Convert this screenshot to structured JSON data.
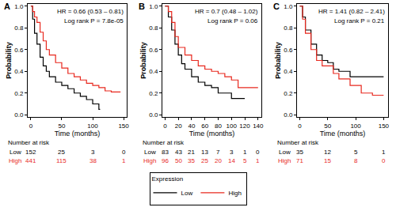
{
  "legend_title": "Expression",
  "chart_data": [
    {
      "type": "line",
      "panel": "A",
      "annotations": [
        "HR = 0.66 (0.53 – 0.81)",
        "Log rank P = 7.8e-05"
      ],
      "x_label": "Time (months)",
      "y_label": "Probability",
      "xlim": [
        -5,
        155
      ],
      "xticks": [
        0,
        50,
        100,
        150
      ],
      "ylim": [
        -0.02,
        1.02
      ],
      "yticks": [
        {
          "value": 0,
          "label": "0.0"
        },
        {
          "value": 0.2,
          "label": "0.2"
        },
        {
          "value": 0.4,
          "label": "0.4"
        },
        {
          "value": 0.6,
          "label": "0.6"
        },
        {
          "value": 0.8,
          "label": "0.8"
        },
        {
          "value": 1,
          "label": "1.0"
        }
      ],
      "grid": false,
      "series": [
        {
          "name": "Low",
          "color": "#000000",
          "line_style": "step",
          "x": [
            0,
            3,
            6,
            10,
            15,
            20,
            25,
            30,
            40,
            50,
            60,
            70,
            80,
            90,
            100,
            110,
            112
          ],
          "values": [
            1.0,
            0.88,
            0.75,
            0.65,
            0.53,
            0.45,
            0.4,
            0.35,
            0.3,
            0.27,
            0.24,
            0.2,
            0.17,
            0.14,
            0.1,
            0.05,
            0.05
          ]
        },
        {
          "name": "High",
          "color": "#e8281e",
          "line_style": "step",
          "x": [
            0,
            3,
            6,
            10,
            15,
            20,
            25,
            30,
            40,
            50,
            60,
            70,
            80,
            90,
            100,
            110,
            120,
            130,
            145
          ],
          "values": [
            1.0,
            0.95,
            0.9,
            0.85,
            0.76,
            0.68,
            0.6,
            0.55,
            0.48,
            0.43,
            0.38,
            0.35,
            0.32,
            0.29,
            0.27,
            0.25,
            0.22,
            0.21,
            0.21
          ]
        }
      ],
      "number_at_risk": {
        "title": "Number at risk",
        "times": [
          0,
          50,
          100,
          150
        ],
        "rows": [
          {
            "name": "Low",
            "values": [
              152,
              25,
              3,
              0
            ]
          },
          {
            "name": "High",
            "values": [
              441,
              115,
              38,
              1
            ]
          }
        ]
      }
    },
    {
      "type": "line",
      "panel": "B",
      "annotations": [
        "HR = 0.7 (0.48 – 1.02)",
        "Log rank P = 0.06"
      ],
      "x_label": "Time (months)",
      "y_label": "Probability",
      "xlim": [
        -4,
        145
      ],
      "xticks": [
        0,
        20,
        40,
        60,
        80,
        100,
        120,
        140
      ],
      "ylim": [
        -0.02,
        1.02
      ],
      "yticks": [
        {
          "value": 0,
          "label": "0.0"
        },
        {
          "value": 0.2,
          "label": "0.2"
        },
        {
          "value": 0.4,
          "label": "0.4"
        },
        {
          "value": 0.6,
          "label": "0.6"
        },
        {
          "value": 0.8,
          "label": "0.8"
        },
        {
          "value": 1,
          "label": "1.0"
        }
      ],
      "grid": false,
      "series": [
        {
          "name": "Low",
          "color": "#000000",
          "line_style": "step",
          "x": [
            0,
            5,
            10,
            15,
            20,
            25,
            30,
            40,
            50,
            60,
            70,
            80,
            100,
            120
          ],
          "values": [
            1.0,
            0.9,
            0.78,
            0.65,
            0.55,
            0.47,
            0.42,
            0.35,
            0.3,
            0.27,
            0.25,
            0.2,
            0.15,
            0.15
          ]
        },
        {
          "name": "High",
          "color": "#e8281e",
          "line_style": "step",
          "x": [
            0,
            5,
            10,
            15,
            20,
            30,
            40,
            50,
            60,
            70,
            80,
            90,
            100,
            110,
            140
          ],
          "values": [
            1.0,
            0.95,
            0.85,
            0.72,
            0.62,
            0.55,
            0.5,
            0.45,
            0.42,
            0.4,
            0.38,
            0.35,
            0.32,
            0.25,
            0.25
          ]
        }
      ],
      "number_at_risk": {
        "title": "Number at risk",
        "times": [
          0,
          20,
          40,
          60,
          80,
          100,
          120,
          140
        ],
        "rows": [
          {
            "name": "Low",
            "values": [
              83,
              43,
              21,
              13,
              7,
              3,
              1,
              0
            ]
          },
          {
            "name": "High",
            "values": [
              96,
              50,
              35,
              25,
              20,
              14,
              5,
              1
            ]
          }
        ]
      }
    },
    {
      "type": "line",
      "panel": "C",
      "annotations": [
        "HR = 1.41 (0.82 – 2.41)",
        "Log rank P = 0.21"
      ],
      "x_label": "Time (months)",
      "y_label": "Probability",
      "xlim": [
        -5,
        158
      ],
      "xticks": [
        0,
        50,
        100,
        150
      ],
      "ylim": [
        -0.02,
        1.02
      ],
      "yticks": [
        {
          "value": 0,
          "label": "0.0"
        },
        {
          "value": 0.2,
          "label": "0.2"
        },
        {
          "value": 0.4,
          "label": "0.4"
        },
        {
          "value": 0.6,
          "label": "0.6"
        },
        {
          "value": 0.8,
          "label": "0.8"
        },
        {
          "value": 1,
          "label": "1.0"
        }
      ],
      "grid": false,
      "series": [
        {
          "name": "Low",
          "color": "#000000",
          "line_style": "step",
          "x": [
            0,
            5,
            10,
            20,
            30,
            40,
            50,
            60,
            70,
            90,
            150
          ],
          "values": [
            1.0,
            0.9,
            0.78,
            0.65,
            0.55,
            0.5,
            0.48,
            0.42,
            0.4,
            0.35,
            0.35
          ]
        },
        {
          "name": "High",
          "color": "#e8281e",
          "line_style": "step",
          "x": [
            0,
            5,
            10,
            20,
            30,
            40,
            60,
            70,
            90,
            110,
            130,
            150
          ],
          "values": [
            1.0,
            0.88,
            0.75,
            0.6,
            0.5,
            0.45,
            0.38,
            0.33,
            0.27,
            0.2,
            0.18,
            0.18
          ]
        }
      ],
      "number_at_risk": {
        "title": "Number at risk",
        "times": [
          0,
          50,
          100,
          150
        ],
        "rows": [
          {
            "name": "Low",
            "values": [
              35,
              12,
              5,
              1
            ]
          },
          {
            "name": "High",
            "values": [
              71,
              15,
              8,
              0
            ]
          }
        ]
      }
    }
  ]
}
